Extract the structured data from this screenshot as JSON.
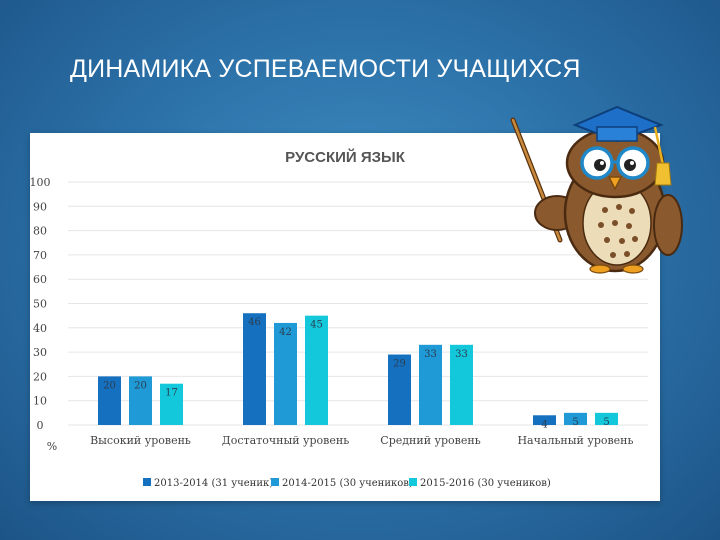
{
  "slide": {
    "title": "ДИНАМИКА УСПЕВАЕМОСТИ УЧАЩИХСЯ"
  },
  "chart_data": {
    "type": "bar",
    "title": "РУССКИЙ ЯЗЫК",
    "ylabel": "%",
    "xlabel": "",
    "ylim": [
      0,
      100
    ],
    "yticks": [
      0,
      10,
      20,
      30,
      40,
      50,
      60,
      70,
      80,
      90,
      100
    ],
    "categories": [
      "Высокий уровень",
      "Достаточный уровень",
      "Средний уровень",
      "Начальный уровень"
    ],
    "series": [
      {
        "name": "2013-2014 (31 ученик)",
        "values": [
          20,
          46,
          29,
          4
        ],
        "color": "#1570c0"
      },
      {
        "name": "2014-2015 (30 учеников)",
        "values": [
          20,
          42,
          33,
          5
        ],
        "color": "#1f9ad6"
      },
      {
        "name": "2015-2016 (30 учеников)",
        "values": [
          17,
          45,
          33,
          5
        ],
        "color": "#14c8dc"
      }
    ],
    "grid": true,
    "legend_position": "bottom"
  },
  "decor": {
    "owl_icon": "owl-teacher-icon",
    "pointer_icon": "pointer-stick-icon"
  }
}
